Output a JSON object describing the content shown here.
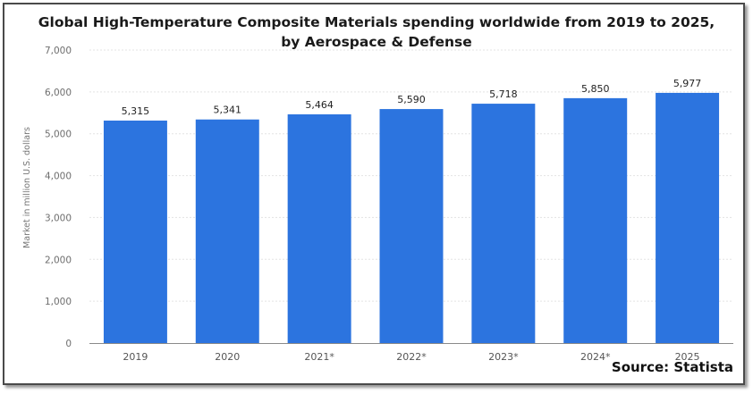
{
  "chart_data": {
    "type": "bar",
    "title_line1": "Global High-Temperature Composite Materials spending worldwide from 2019 to 2025,",
    "title_line2": "by Aerospace & Defense",
    "xlabel": "",
    "ylabel": "Market in million U.S. dollars",
    "categories": [
      "2019",
      "2020",
      "2021*",
      "2022*",
      "2023*",
      "2024*",
      "2025"
    ],
    "values": [
      5315,
      5341,
      5464,
      5590,
      5718,
      5850,
      5977
    ],
    "value_labels": [
      "5,315",
      "5,341",
      "5,464",
      "5,590",
      "5,718",
      "5,850",
      "5,977"
    ],
    "ylim": [
      0,
      7000
    ],
    "yticks": [
      0,
      1000,
      2000,
      3000,
      4000,
      5000,
      6000,
      7000
    ],
    "ytick_labels": [
      "0",
      "1,000",
      "2,000",
      "3,000",
      "4,000",
      "5,000",
      "6,000",
      "7,000"
    ],
    "grid": true,
    "bar_color": "#2c74df",
    "source": "Source: Statista"
  }
}
